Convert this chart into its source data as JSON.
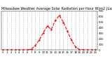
{
  "title": "Milwaukee Weather Average Solar Radiation per Hour W/m2 (Last 24 Hours)",
  "x_hours": [
    0,
    1,
    2,
    3,
    4,
    5,
    6,
    7,
    8,
    9,
    10,
    11,
    12,
    13,
    14,
    15,
    16,
    17,
    18,
    19,
    20,
    21,
    22,
    23
  ],
  "y_values": [
    0,
    0,
    0,
    0,
    0,
    0,
    1,
    15,
    80,
    180,
    310,
    430,
    370,
    530,
    620,
    500,
    340,
    180,
    60,
    10,
    1,
    0,
    0,
    0
  ],
  "line_color": "#ff0000",
  "line_style": "--",
  "line_width": 0.8,
  "marker": ".",
  "marker_size": 1.5,
  "ylim": [
    0,
    700
  ],
  "xlim": [
    -0.5,
    23.5
  ],
  "grid_color": "#888888",
  "grid_style": ":",
  "bg_color": "#ffffff",
  "title_fontsize": 3.5,
  "tick_fontsize": 2.8,
  "yticks": [
    0,
    100,
    200,
    300,
    400,
    500,
    600,
    700
  ]
}
